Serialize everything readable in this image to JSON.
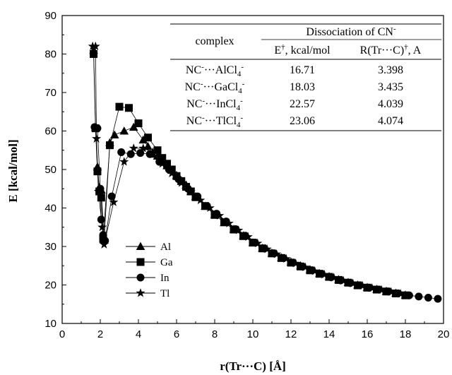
{
  "chart_data": {
    "type": "scatter",
    "xlabel": "r(Tr···C) [Å]",
    "ylabel": "E [kcal/mol]",
    "xlim": [
      0,
      20
    ],
    "ylim": [
      10,
      90
    ],
    "x_ticks": [
      0,
      2,
      4,
      6,
      8,
      10,
      12,
      14,
      16,
      18,
      20
    ],
    "y_ticks": [
      10,
      20,
      30,
      40,
      50,
      60,
      70,
      80,
      90
    ],
    "grid": false,
    "legend_position": "lower-left",
    "series": [
      {
        "name": "Al",
        "marker": "triangle",
        "x": [
          1.65,
          1.75,
          1.85,
          1.95,
          2.05,
          2.2,
          2.5,
          2.75,
          3.25,
          3.75,
          4.25,
          4.5,
          4.75,
          5.0,
          5.25,
          5.5,
          5.75,
          6.0,
          6.25,
          6.5,
          6.75,
          7.0,
          7.5,
          8.0,
          8.5,
          9.0,
          9.5,
          10.0,
          10.5,
          11.0,
          11.5,
          12.0,
          12.5,
          13.0,
          13.5,
          14.0,
          14.5,
          15.0,
          15.5,
          16.0,
          16.5,
          17.0,
          17.5,
          18.0
        ],
        "y": [
          81.0,
          61.0,
          50.7,
          45.3,
          44.7,
          31.7,
          57.0,
          59.0,
          60.0,
          61.0,
          57.7,
          56.0,
          54.0,
          53.5,
          52.3,
          51.0,
          49.8,
          48.5,
          47.0,
          46.0,
          44.3,
          43.0,
          40.5,
          38.3,
          36.2,
          34.5,
          32.8,
          31.0,
          29.6,
          28.3,
          27.1,
          26.0,
          25.0,
          24.0,
          23.0,
          22.2,
          21.4,
          20.7,
          20.0,
          19.4,
          18.9,
          18.4,
          17.9,
          17.4
        ]
      },
      {
        "name": "Ga",
        "marker": "square",
        "x": [
          1.65,
          1.75,
          1.85,
          1.95,
          2.05,
          2.15,
          2.5,
          3.0,
          3.5,
          4.0,
          4.5,
          5.0,
          5.25,
          5.5,
          5.75,
          6.0,
          6.25,
          6.5,
          6.75,
          7.0,
          7.5,
          8.0,
          8.5,
          9.0,
          9.5,
          10.0,
          10.5,
          11.0,
          11.5,
          12.0,
          12.5,
          13.0,
          13.5,
          14.0,
          14.5,
          15.0,
          15.5,
          16.0,
          16.5,
          17.0,
          17.5,
          18.0
        ],
        "y": [
          80.0,
          60.7,
          49.5,
          44.3,
          42.7,
          32.0,
          56.3,
          66.3,
          66.0,
          62.0,
          58.3,
          55.0,
          53.0,
          51.5,
          50.0,
          48.3,
          47.0,
          45.5,
          44.3,
          42.8,
          40.5,
          38.2,
          36.3,
          34.4,
          32.7,
          31.0,
          29.5,
          28.2,
          27.0,
          25.8,
          24.8,
          23.8,
          22.9,
          22.1,
          21.3,
          20.6,
          19.9,
          19.3,
          18.8,
          18.3,
          17.8,
          17.3
        ]
      },
      {
        "name": "In",
        "marker": "circle",
        "x": [
          1.7,
          1.85,
          2.0,
          2.05,
          2.15,
          2.25,
          2.6,
          3.1,
          3.6,
          4.1,
          4.6,
          5.1,
          5.6,
          6.1,
          6.6,
          7.1,
          7.6,
          8.1,
          8.6,
          9.1,
          9.6,
          10.1,
          10.6,
          11.1,
          11.6,
          12.1,
          12.6,
          13.1,
          13.6,
          14.1,
          14.6,
          15.1,
          15.6,
          16.1,
          16.6,
          17.1,
          17.6,
          18.2,
          18.7,
          19.2,
          19.7
        ],
        "y": [
          61.0,
          60.7,
          45.0,
          37.0,
          33.0,
          31.5,
          43.0,
          54.5,
          54.0,
          54.3,
          54.0,
          52.0,
          50.0,
          47.5,
          45.0,
          43.0,
          40.5,
          38.5,
          36.5,
          34.5,
          32.8,
          31.0,
          29.5,
          28.2,
          27.0,
          25.8,
          24.8,
          23.8,
          22.9,
          22.0,
          21.2,
          20.5,
          19.9,
          19.3,
          18.8,
          18.3,
          17.8,
          17.3,
          17.0,
          16.7,
          16.4
        ]
      },
      {
        "name": "Tl",
        "marker": "star",
        "x": [
          1.6,
          1.75,
          1.8,
          1.9,
          2.1,
          2.2,
          2.7,
          3.25,
          3.75,
          4.25,
          4.75,
          5.25,
          5.75,
          6.25,
          6.75,
          7.25,
          7.75,
          8.25,
          8.75,
          9.25,
          9.75,
          10.25,
          10.75,
          11.25,
          11.75,
          12.25,
          12.75,
          13.25,
          13.75,
          14.25,
          14.75,
          15.25,
          15.75,
          16.25,
          16.75,
          17.25,
          17.75
        ],
        "y": [
          82.0,
          82.0,
          58.0,
          44.3,
          35.0,
          30.5,
          41.5,
          52.0,
          55.5,
          55.5,
          54.5,
          51.5,
          49.0,
          46.5,
          44.3,
          42.0,
          40.0,
          38.0,
          36.0,
          34.2,
          32.5,
          30.8,
          29.3,
          28.0,
          26.8,
          25.6,
          24.6,
          23.6,
          22.7,
          21.9,
          21.1,
          20.4,
          19.8,
          19.2,
          18.7,
          18.2,
          17.7
        ]
      }
    ],
    "table": {
      "header_col": "complex",
      "header_group": "Dissociation of CN",
      "header_group_sup": "-",
      "sub_headers": [
        {
          "text": "E",
          "sup": "†",
          "rest": ", kcal/mol"
        },
        {
          "text": "R(Tr···C)",
          "sup": "†",
          "rest": ", A"
        }
      ],
      "rows": [
        {
          "complex_parts": [
            "NC",
            "-",
            "···AlCl",
            "4",
            "-"
          ],
          "e": "16.71",
          "r": "3.398"
        },
        {
          "complex_parts": [
            "NC",
            "-",
            "···GaCl",
            "4",
            "-"
          ],
          "e": "18.03",
          "r": "3.435"
        },
        {
          "complex_parts": [
            "NC",
            "-",
            "···InCl",
            "4",
            "-"
          ],
          "e": "22.57",
          "r": "4.039"
        },
        {
          "complex_parts": [
            "NC",
            "-",
            "···TlCl",
            "4",
            "-"
          ],
          "e": "23.06",
          "r": "4.074"
        }
      ]
    }
  }
}
